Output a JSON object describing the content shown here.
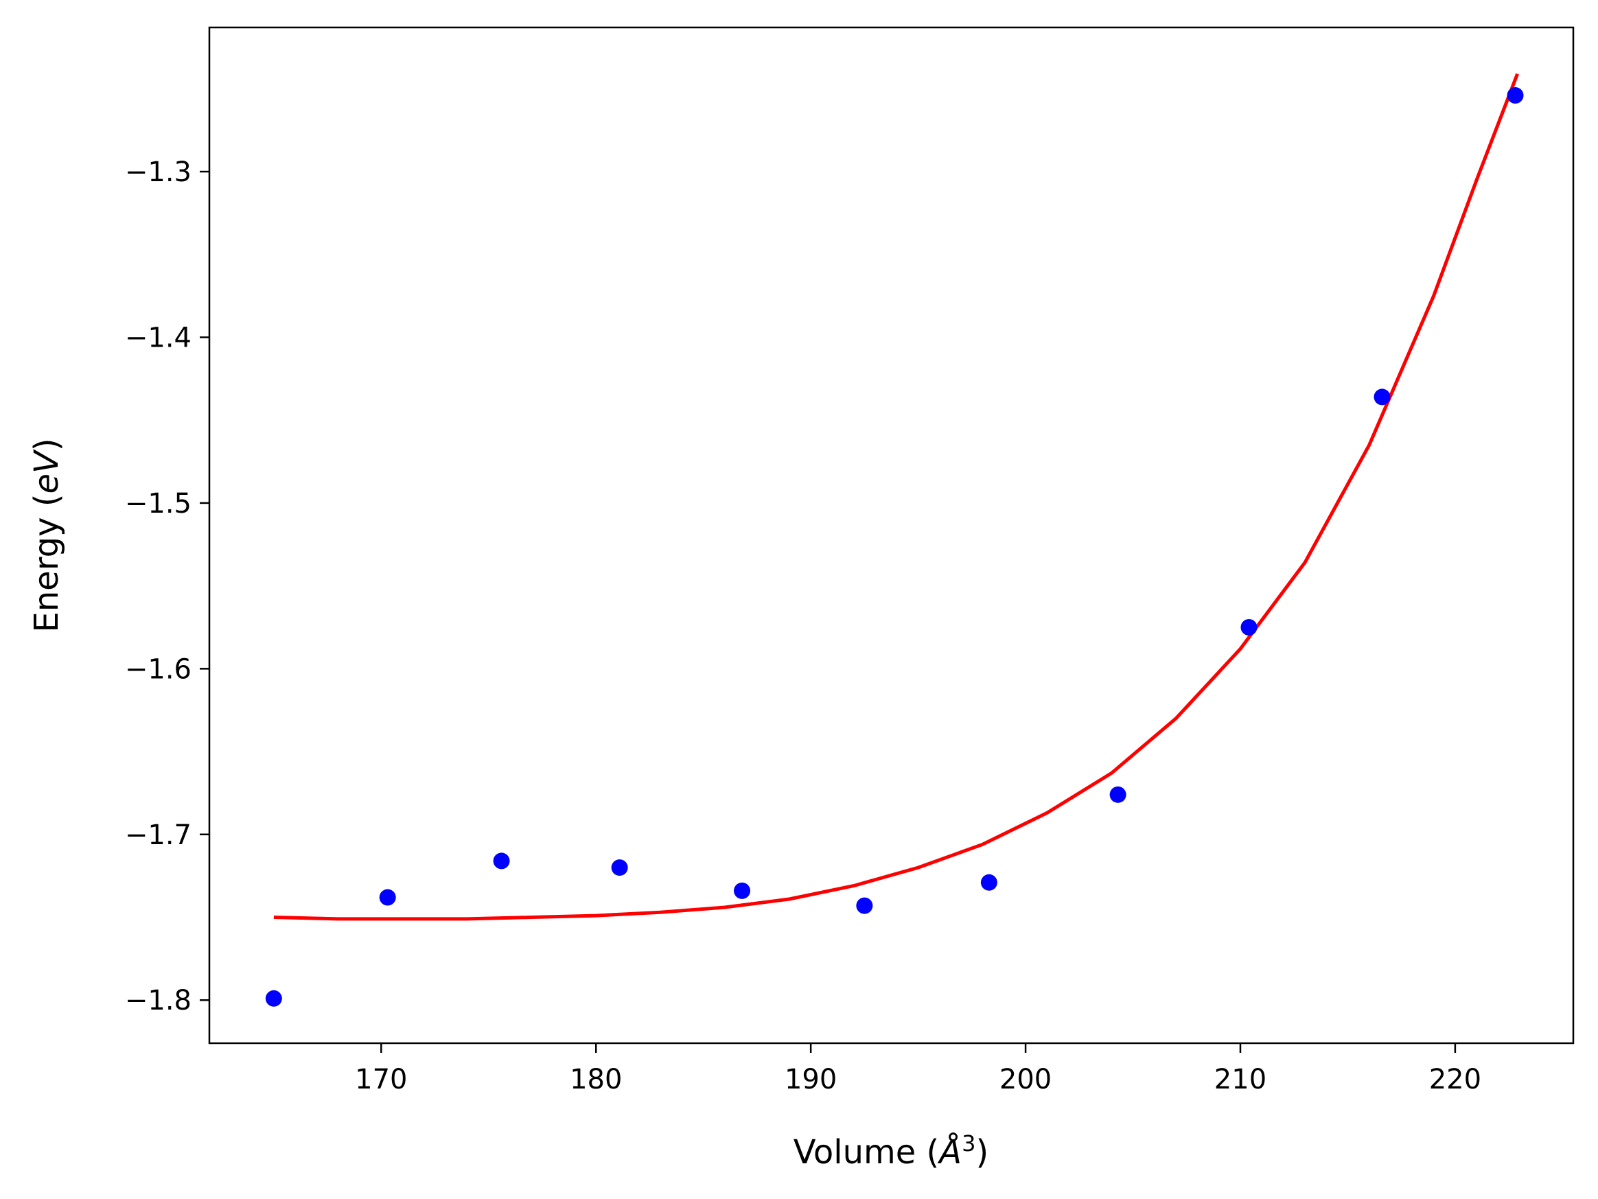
{
  "chart_data": {
    "type": "scatter",
    "title": "",
    "xlabel": "Volume (",
    "xlabel_symbol": "Å",
    "xlabel_exponent": "3",
    "xlabel_close": ")",
    "ylabel": "Energy (",
    "ylabel_unit": "eV",
    "ylabel_close": ")",
    "xlim": [
      162.0,
      225.5
    ],
    "ylim": [
      -1.826,
      -1.213
    ],
    "xticks": [
      170,
      180,
      190,
      200,
      210,
      220
    ],
    "xtick_labels": [
      "170",
      "180",
      "190",
      "200",
      "210",
      "220"
    ],
    "yticks": [
      -1.8,
      -1.7,
      -1.6,
      -1.5,
      -1.4,
      -1.3
    ],
    "ytick_labels": [
      "−1.8",
      "−1.7",
      "−1.6",
      "−1.5",
      "−1.4",
      "−1.3"
    ],
    "grid": false,
    "colors": {
      "points": "#0000ff",
      "fit": "#ff0000",
      "axes": "#000000"
    },
    "series": [
      {
        "kind": "scatter",
        "x": [
          165.0,
          170.3,
          175.6,
          181.1,
          186.8,
          192.5,
          198.3,
          204.3,
          210.4,
          216.6,
          222.8
        ],
        "y": [
          -1.799,
          -1.738,
          -1.716,
          -1.72,
          -1.734,
          -1.743,
          -1.729,
          -1.676,
          -1.575,
          -1.436,
          -1.254
        ]
      },
      {
        "kind": "line",
        "x": [
          165.0,
          168.0,
          171.0,
          174.0,
          177.0,
          180.0,
          183.0,
          186.0,
          189.0,
          192.0,
          195.0,
          198.0,
          201.0,
          204.0,
          207.0,
          210.0,
          213.0,
          216.0,
          219.0,
          221.0,
          222.9
        ],
        "y": [
          -1.75,
          -1.751,
          -1.751,
          -1.751,
          -1.75,
          -1.749,
          -1.747,
          -1.744,
          -1.739,
          -1.731,
          -1.72,
          -1.706,
          -1.687,
          -1.663,
          -1.63,
          -1.588,
          -1.536,
          -1.465,
          -1.375,
          -1.305,
          -1.241
        ]
      }
    ]
  }
}
